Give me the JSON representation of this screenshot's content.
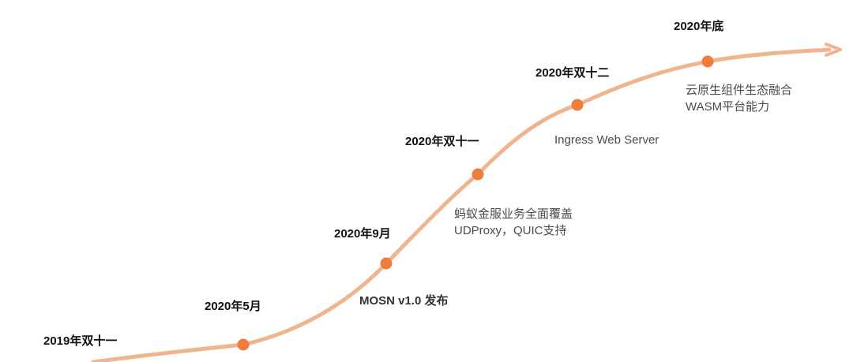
{
  "colors": {
    "curve": "#f0b48f",
    "dot": "#ee7d3b",
    "date_text": "#111111",
    "desc_text": "#4a4a4a"
  },
  "milestones": [
    {
      "date": "2019年双十一"
    },
    {
      "date": "2020年5月"
    },
    {
      "date": "2020年9月",
      "desc": [
        "MOSN v1.0 发布"
      ]
    },
    {
      "date": "2020年双十一",
      "desc": [
        "蚂蚁金服业务全面覆盖",
        "UDProxy，QUIC支持"
      ]
    },
    {
      "date": "2020年双十二",
      "desc": [
        "Ingress Web Server"
      ]
    },
    {
      "date": "2020年底",
      "desc": [
        "云原生组件生态融合",
        "WASM平台能力"
      ]
    }
  ]
}
